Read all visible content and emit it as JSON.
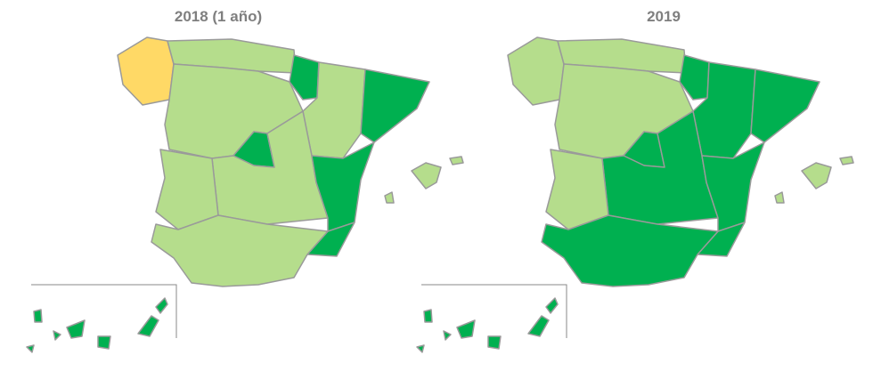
{
  "maps": [
    {
      "title": "2018 (1 año)"
    },
    {
      "title": "2019"
    }
  ]
}
